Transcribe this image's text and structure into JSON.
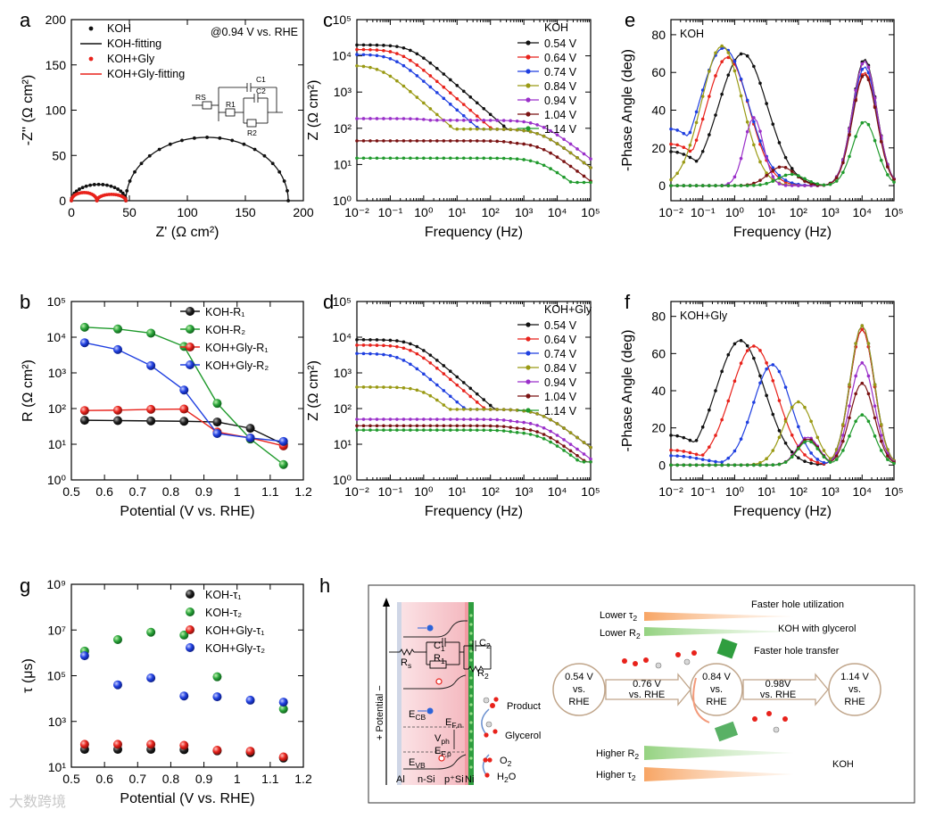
{
  "watermark": "大数跨境",
  "colors": {
    "black": "#111111",
    "red": "#e8221b",
    "blue": "#1f3fe0",
    "olive": "#9a9a14",
    "purple": "#9a2fc9",
    "maroon": "#7a1212",
    "green": "#1f9a2c",
    "darkgreen": "#1f8a2c"
  },
  "chart_data": [
    {
      "id": "a",
      "panel": "a",
      "type": "line",
      "xlabel": "Z' (Ω cm²)",
      "ylabel": "-Z'' (Ω cm²)",
      "xlim": [
        0,
        200
      ],
      "ylim": [
        0,
        200
      ],
      "xticks": [
        0,
        50,
        100,
        150,
        200
      ],
      "yticks": [
        0,
        50,
        100,
        150,
        200
      ],
      "annotation": "@0.94 V vs. RHE",
      "legend_position": "top-left",
      "legend": [
        "KOH",
        "KOH-fitting",
        "KOH+Gly",
        "KOH+Gly-fitting"
      ],
      "series": [
        {
          "name": "KOH",
          "color": "black",
          "arcs": [
            [
              0,
              47,
              18
            ],
            [
              47,
              187,
              70
            ]
          ]
        },
        {
          "name": "KOH+Gly",
          "color": "red",
          "arcs": [
            [
              0,
              22,
              9
            ],
            [
              22,
              47,
              7
            ]
          ]
        }
      ],
      "inset_labels": [
        "RS",
        "C1",
        "R1",
        "C2",
        "R2"
      ]
    },
    {
      "id": "b",
      "panel": "b",
      "type": "line",
      "yscale": "log",
      "xlabel": "Potential (V vs. RHE)",
      "ylabel": "R (Ω cm²)",
      "xlim": [
        0.5,
        1.2
      ],
      "ylim": [
        1,
        100000
      ],
      "xticks": [
        0.5,
        0.6,
        0.7,
        0.8,
        0.9,
        1.0,
        1.1,
        1.2
      ],
      "yticklabels": [
        "10⁰",
        "10¹",
        "10²",
        "10³",
        "10⁴",
        "10⁵"
      ],
      "legend_position": "top-right",
      "legend": [
        "KOH-R₁",
        "KOH-R₂",
        "KOH+Gly-R₁",
        "KOH+Gly-R₂"
      ],
      "x": [
        0.54,
        0.64,
        0.74,
        0.84,
        0.94,
        1.04,
        1.14
      ],
      "series": [
        {
          "name": "KOH-R1",
          "color": "black",
          "values": [
            47,
            46,
            45,
            44,
            42,
            28,
            10
          ]
        },
        {
          "name": "KOH-R2",
          "color": "green",
          "values": [
            19000,
            17000,
            13000,
            5500,
            140,
            14,
            2.7
          ]
        },
        {
          "name": "KOH+Gly-R1",
          "color": "red",
          "values": [
            88,
            90,
            95,
            97,
            22,
            15,
            9
          ]
        },
        {
          "name": "KOH+Gly-R2",
          "color": "blue",
          "values": [
            7000,
            4500,
            1600,
            330,
            20,
            15,
            12
          ]
        }
      ]
    },
    {
      "id": "c",
      "panel": "c",
      "type": "line",
      "xscale": "log",
      "yscale": "log",
      "xlabel": "Frequency (Hz)",
      "ylabel": "Z (Ω cm²)",
      "xlim": [
        0.01,
        100000
      ],
      "ylim": [
        1,
        100000
      ],
      "xticklabels": [
        "10⁻²",
        "10⁻¹",
        "10⁰",
        "10¹",
        "10²",
        "10³",
        "10⁴",
        "10⁵"
      ],
      "yticklabels": [
        "10⁰",
        "10¹",
        "10²",
        "10³",
        "10⁴",
        "10⁵"
      ],
      "legend_title": "KOH",
      "legend_position": "top-right",
      "series": [
        {
          "name": "0.54 V",
          "color": "black",
          "plateau": 20000,
          "fc": 0.4
        },
        {
          "name": "0.64 V",
          "color": "red",
          "plateau": 15000,
          "fc": 0.2
        },
        {
          "name": "0.74 V",
          "color": "blue",
          "plateau": 11000,
          "fc": 0.12
        },
        {
          "name": "0.84 V",
          "color": "olive",
          "plateau": 5500,
          "fc": 0.05
        },
        {
          "name": "0.94 V",
          "color": "purple",
          "plateau": 185,
          "fc": 4
        },
        {
          "name": "1.04 V",
          "color": "maroon",
          "plateau": 45,
          "fc": 999
        },
        {
          "name": "1.14 V",
          "color": "green",
          "plateau": 15,
          "fc": 999
        }
      ]
    },
    {
      "id": "d",
      "panel": "d",
      "type": "line",
      "xscale": "log",
      "yscale": "log",
      "xlabel": "Frequency (Hz)",
      "ylabel": "Z (Ω cm²)",
      "xlim": [
        0.01,
        100000
      ],
      "ylim": [
        1,
        100000
      ],
      "xticklabels": [
        "10⁻²",
        "10⁻¹",
        "10⁰",
        "10¹",
        "10²",
        "10³",
        "10⁴",
        "10⁵"
      ],
      "yticklabels": [
        "10⁰",
        "10¹",
        "10²",
        "10³",
        "10⁴",
        "10⁵"
      ],
      "legend_title": "KOH+Gly",
      "legend_position": "top-right",
      "series": [
        {
          "name": "0.54 V",
          "color": "black",
          "plateau": 8500,
          "fc": 0.5
        },
        {
          "name": "0.64 V",
          "color": "red",
          "plateau": 6000,
          "fc": 0.4
        },
        {
          "name": "0.74 V",
          "color": "blue",
          "plateau": 3500,
          "fc": 0.2
        },
        {
          "name": "0.84 V",
          "color": "olive",
          "plateau": 400,
          "fc": 1
        },
        {
          "name": "0.94 V",
          "color": "purple",
          "plateau": 50,
          "fc": 999
        },
        {
          "name": "1.04 V",
          "color": "maroon",
          "plateau": 33,
          "fc": 999
        },
        {
          "name": "1.14 V",
          "color": "green",
          "plateau": 25,
          "fc": 999
        }
      ]
    },
    {
      "id": "e",
      "panel": "e",
      "type": "line",
      "xscale": "log",
      "xlabel": "Frequency (Hz)",
      "ylabel": "-Phase Angle (deg)",
      "xlim": [
        0.01,
        100000
      ],
      "ylim": [
        -8,
        88
      ],
      "xticklabels": [
        "10⁻²",
        "10⁻¹",
        "10⁰",
        "10¹",
        "10²",
        "10³",
        "10⁴",
        "10⁵"
      ],
      "yticks": [
        0,
        20,
        40,
        60,
        80
      ],
      "legend_title": "KOH",
      "legend_position": "top-left",
      "series": [
        {
          "name": "0.54 V",
          "color": "black",
          "peaks": [
            [
              1.8,
              70,
              0.9
            ],
            [
              12000,
              67,
              0.45
            ]
          ],
          "floor": 18
        },
        {
          "name": "0.64 V",
          "color": "red",
          "peaks": [
            [
              0.6,
              68,
              0.8
            ],
            [
              12000,
              60,
              0.45
            ]
          ],
          "floor": 22
        },
        {
          "name": "0.74 V",
          "color": "blue",
          "peaks": [
            [
              0.45,
              73,
              0.9
            ],
            [
              12000,
              63,
              0.45
            ]
          ],
          "floor": 30
        },
        {
          "name": "0.84 V",
          "color": "olive",
          "peaks": [
            [
              0.4,
              74,
              0.75
            ],
            [
              12000,
              66,
              0.45
            ]
          ],
          "floor": 0
        },
        {
          "name": "0.94 V",
          "color": "purple",
          "peaks": [
            [
              4,
              36,
              0.35
            ],
            [
              12000,
              66,
              0.45
            ]
          ],
          "floor": 0
        },
        {
          "name": "1.04 V",
          "color": "maroon",
          "peaks": [
            [
              30,
              10,
              0.5
            ],
            [
              12000,
              59,
              0.45
            ]
          ],
          "floor": -1
        },
        {
          "name": "1.14 V",
          "color": "green",
          "peaks": [
            [
              60,
              6,
              0.5
            ],
            [
              12000,
              34,
              0.45
            ]
          ],
          "floor": -1
        }
      ]
    },
    {
      "id": "f",
      "panel": "f",
      "type": "line",
      "xscale": "log",
      "xlabel": "Frequency (Hz)",
      "ylabel": "-Phase Angle (deg)",
      "xlim": [
        0.01,
        100000
      ],
      "ylim": [
        -8,
        88
      ],
      "xticklabels": [
        "10⁻²",
        "10⁻¹",
        "10⁰",
        "10¹",
        "10²",
        "10³",
        "10⁴",
        "10⁵"
      ],
      "yticks": [
        0,
        20,
        40,
        60,
        80
      ],
      "legend_title": "KOH+Gly",
      "legend_position": "top-left",
      "series": [
        {
          "name": "0.54 V",
          "color": "black",
          "peaks": [
            [
              1.5,
              67,
              0.9
            ],
            [
              10000,
              73,
              0.45
            ]
          ],
          "floor": 16
        },
        {
          "name": "0.64 V",
          "color": "red",
          "peaks": [
            [
              4,
              64,
              0.85
            ],
            [
              10000,
              73,
              0.45
            ]
          ],
          "floor": 8
        },
        {
          "name": "0.74 V",
          "color": "blue",
          "peaks": [
            [
              15,
              54,
              0.7
            ],
            [
              10000,
              75,
              0.45
            ]
          ],
          "floor": 5
        },
        {
          "name": "0.84 V",
          "color": "olive",
          "peaks": [
            [
              100,
              34,
              0.55
            ],
            [
              10000,
              75,
              0.45
            ]
          ],
          "floor": -2
        },
        {
          "name": "0.94 V",
          "color": "purple",
          "peaks": [
            [
              200,
              15,
              0.4
            ],
            [
              10000,
              55,
              0.45
            ]
          ],
          "floor": -2
        },
        {
          "name": "1.04 V",
          "color": "maroon",
          "peaks": [
            [
              200,
              14,
              0.4
            ],
            [
              10000,
              44,
              0.45
            ]
          ],
          "floor": -3
        },
        {
          "name": "1.14 V",
          "color": "green",
          "peaks": [
            [
              200,
              13,
              0.4
            ],
            [
              10000,
              27,
              0.45
            ]
          ],
          "floor": -4
        }
      ]
    },
    {
      "id": "g",
      "panel": "g",
      "type": "scatter",
      "yscale": "log",
      "xlabel": "Potential (V vs. RHE)",
      "ylabel": "τ (μs)",
      "xlim": [
        0.5,
        1.2
      ],
      "ylim": [
        10,
        1000000000
      ],
      "xticks": [
        0.5,
        0.6,
        0.7,
        0.8,
        0.9,
        1.0,
        1.1,
        1.2
      ],
      "yticklabels": [
        "10¹",
        "10³",
        "10⁵",
        "10⁷",
        "10⁹"
      ],
      "legend_position": "top-right",
      "legend": [
        "KOH-τ₁",
        "KOH-τ₂",
        "KOH+Gly-τ₁",
        "KOH+Gly-τ₂"
      ],
      "x": [
        0.54,
        0.64,
        0.74,
        0.84,
        0.94,
        1.04,
        1.14
      ],
      "series": [
        {
          "name": "KOH-tau1",
          "color": "black",
          "values": [
            60,
            60,
            60,
            58,
            52,
            43,
            25
          ]
        },
        {
          "name": "KOH-tau2",
          "color": "green",
          "values": [
            1200000,
            3800000,
            8000000,
            6000000,
            90000,
            null,
            3500
          ]
        },
        {
          "name": "KOH+Gly-tau1",
          "color": "red",
          "values": [
            100,
            100,
            100,
            90,
            55,
            50,
            28
          ]
        },
        {
          "name": "KOH+Gly-tau2",
          "color": "blue",
          "values": [
            750000,
            40000,
            80000,
            13000,
            12000,
            8500,
            7000
          ]
        }
      ]
    }
  ],
  "panel_h": {
    "letter": "h",
    "axis_label": "+ Potential −",
    "layers": [
      "Al",
      "n-Si",
      "p⁺Si",
      "Ni"
    ],
    "circuit": [
      "R",
      "s",
      "C",
      "1",
      "R",
      "1",
      "C",
      "2",
      "R",
      "2"
    ],
    "bands": [
      "E",
      "CB",
      "E",
      "F,n",
      "V",
      "ph",
      "E",
      "F,p",
      "E",
      "VB"
    ],
    "species": [
      "Product",
      "Glycerol",
      "O",
      "2",
      "H",
      "2",
      "O"
    ],
    "states": [
      {
        "line1": "0.54 V",
        "line2": "vs.",
        "line3": "RHE"
      },
      {
        "line1": "0.84 V",
        "line2": "vs.",
        "line3": "RHE"
      },
      {
        "line1": "1.14 V",
        "line2": "vs.",
        "line3": "RHE"
      }
    ],
    "transitions": [
      {
        "line1": "0.76 V",
        "line2": "vs. RHE"
      },
      {
        "line1": "0.98V",
        "line2": "vs. RHE"
      }
    ],
    "labels": {
      "faster_hole_utilization": "Faster hole utilization",
      "koh_with_glycerol": "KOH with glycerol",
      "faster_hole_transfer": "Faster hole transfer",
      "koh": "KOH",
      "lower": "Lower",
      "higher": "Higher",
      "tau": "τ",
      "r": "R",
      "sub2": "2"
    }
  }
}
